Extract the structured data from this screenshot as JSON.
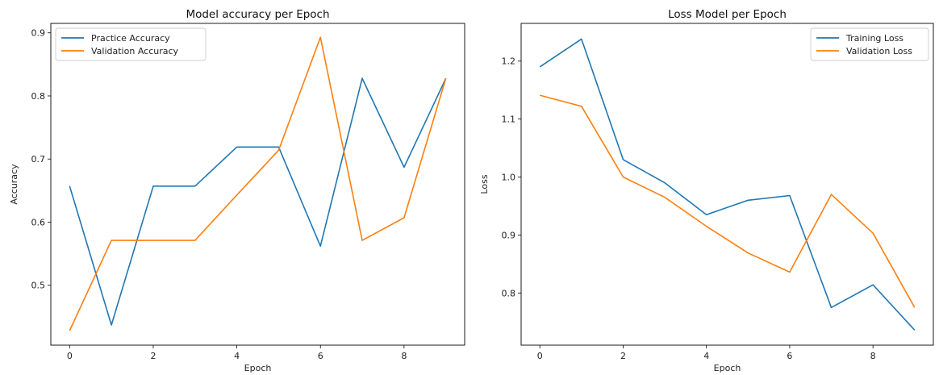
{
  "chart_data": [
    {
      "type": "line",
      "title": "Model accuracy per Epoch",
      "xlabel": "Epoch",
      "ylabel": "Accuracy",
      "x": [
        0,
        1,
        2,
        3,
        4,
        5,
        6,
        7,
        8,
        9
      ],
      "xticks": [
        0,
        2,
        4,
        6,
        8
      ],
      "yticks": [
        0.5,
        0.6,
        0.7,
        0.8,
        0.9
      ],
      "xlim": [
        -0.45,
        9.45
      ],
      "ylim": [
        0.405,
        0.915
      ],
      "legend_position": "top-left",
      "series": [
        {
          "name": "Practice Accuracy",
          "color": "#1f77b4",
          "values": [
            0.657,
            0.437,
            0.657,
            0.657,
            0.719,
            0.719,
            0.562,
            0.828,
            0.687,
            0.828
          ]
        },
        {
          "name": "Validation Accuracy",
          "color": "#ff7f0e",
          "values": [
            0.428,
            0.571,
            0.571,
            0.571,
            0.643,
            0.714,
            0.893,
            0.571,
            0.607,
            0.828
          ]
        }
      ]
    },
    {
      "type": "line",
      "title": "Loss Model per Epoch",
      "xlabel": "Epoch",
      "ylabel": "Loss",
      "x": [
        0,
        1,
        2,
        3,
        4,
        5,
        6,
        7,
        8,
        9
      ],
      "xticks": [
        0,
        2,
        4,
        6,
        8
      ],
      "yticks": [
        0.8,
        0.9,
        1.0,
        1.1,
        1.2
      ],
      "xlim": [
        -0.45,
        9.45
      ],
      "ylim": [
        0.71,
        1.265
      ],
      "legend_position": "top-right",
      "series": [
        {
          "name": "Training Loss",
          "color": "#1f77b4",
          "values": [
            1.19,
            1.238,
            1.03,
            0.99,
            0.935,
            0.96,
            0.968,
            0.775,
            0.814,
            0.736
          ]
        },
        {
          "name": "Validation Loss",
          "color": "#ff7f0e",
          "values": [
            1.141,
            1.122,
            1.0,
            0.965,
            0.915,
            0.869,
            0.836,
            0.97,
            0.903,
            0.775
          ]
        }
      ]
    }
  ]
}
